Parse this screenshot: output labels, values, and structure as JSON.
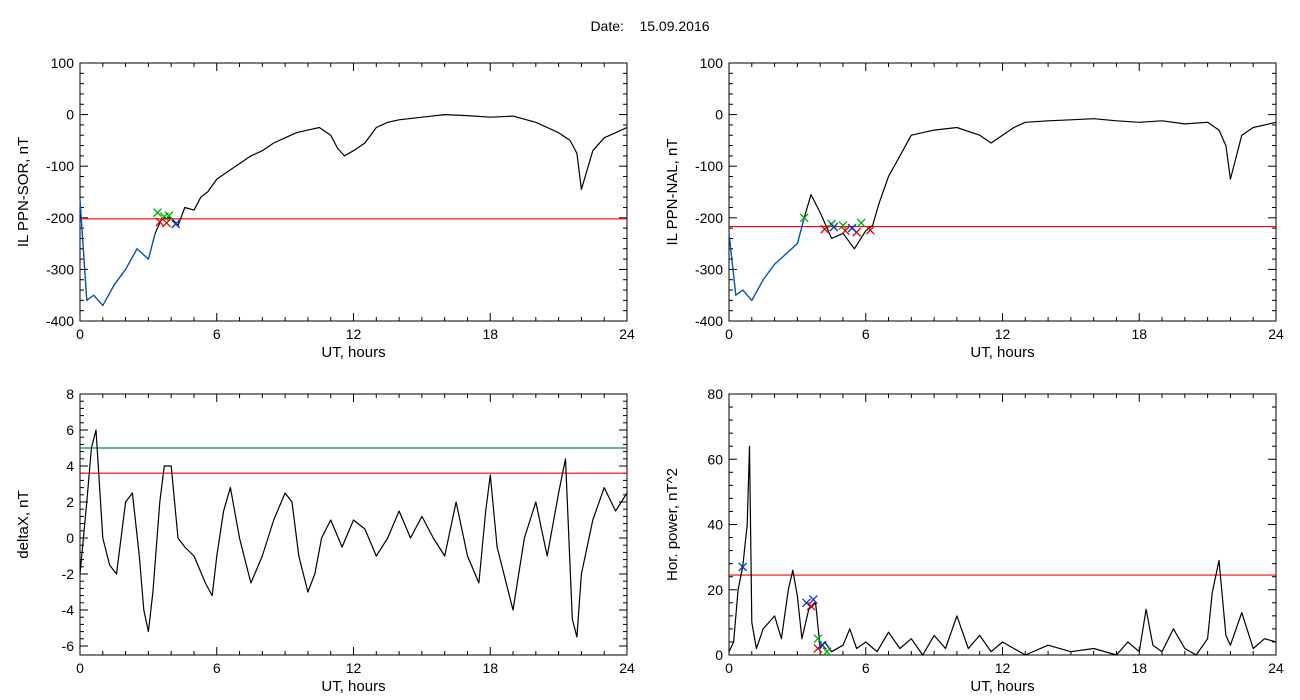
{
  "header": {
    "date_label": "Date:",
    "date_value": "15.09.2016"
  },
  "chart_data": [
    {
      "type": "line",
      "xlabel": "UT, hours",
      "ylabel": "IL PPN-SOR, nT",
      "xlim": [
        0,
        24
      ],
      "ylim": [
        -400,
        100
      ],
      "xticks": [
        0,
        6,
        12,
        18,
        24
      ],
      "yticks": [
        -400,
        -300,
        -200,
        -100,
        0,
        100
      ],
      "threshold": {
        "y": -202,
        "color": "#ff0000"
      },
      "series": [
        {
          "color": "#000000",
          "x": [
            0,
            0.3,
            0.6,
            1,
            1.5,
            2,
            2.5,
            3,
            3.3,
            3.6,
            4,
            4.3,
            4.6,
            5,
            5.3,
            5.6,
            6,
            6.5,
            7,
            7.5,
            8,
            8.5,
            9,
            9.5,
            10,
            10.5,
            11,
            11.3,
            11.6,
            12,
            12.5,
            13,
            13.5,
            14,
            15,
            16,
            17,
            18,
            19,
            20,
            20.5,
            21,
            21.5,
            21.8,
            22,
            22.5,
            23,
            23.5,
            24
          ],
          "y": [
            -165,
            -360,
            -350,
            -370,
            -330,
            -300,
            -260,
            -280,
            -230,
            -200,
            -200,
            -215,
            -180,
            -185,
            -160,
            -150,
            -125,
            -110,
            -95,
            -80,
            -70,
            -55,
            -45,
            -35,
            -30,
            -25,
            -40,
            -65,
            -80,
            -70,
            -55,
            -25,
            -15,
            -10,
            -5,
            0,
            -2,
            -5,
            -3,
            -15,
            -25,
            -35,
            -50,
            -75,
            -145,
            -70,
            -45,
            -35,
            -25
          ]
        },
        {
          "color": "#0055cc",
          "x": [
            0,
            0.3,
            0.6,
            1,
            1.5,
            2,
            2.5,
            3,
            3.3
          ],
          "y": [
            -165,
            -360,
            -350,
            -370,
            -330,
            -300,
            -260,
            -280,
            -230
          ]
        }
      ],
      "markers": [
        {
          "x": 3.4,
          "y": -190,
          "color": "#00aa00"
        },
        {
          "x": 3.7,
          "y": -198,
          "color": "#00aa00"
        },
        {
          "x": 3.9,
          "y": -196,
          "color": "#00aa00"
        },
        {
          "x": 3.5,
          "y": -208,
          "color": "#dd0000"
        },
        {
          "x": 3.8,
          "y": -210,
          "color": "#dd0000"
        },
        {
          "x": 4.2,
          "y": -212,
          "color": "#0033cc"
        }
      ]
    },
    {
      "type": "line",
      "xlabel": "UT, hours",
      "ylabel": "IL PPN-NAL, nT",
      "xlim": [
        0,
        24
      ],
      "ylim": [
        -400,
        100
      ],
      "xticks": [
        0,
        6,
        12,
        18,
        24
      ],
      "yticks": [
        -400,
        -300,
        -200,
        -100,
        0,
        100
      ],
      "threshold": {
        "y": -217,
        "color": "#ff0000"
      },
      "series": [
        {
          "color": "#000000",
          "x": [
            0,
            0.3,
            0.6,
            1,
            1.5,
            2,
            2.5,
            3,
            3.3,
            3.6,
            4,
            4.5,
            5,
            5.5,
            6,
            6.3,
            6.6,
            7,
            7.5,
            8,
            9,
            10,
            11,
            11.5,
            12,
            12.5,
            13,
            14,
            15,
            16,
            17,
            18,
            19,
            20,
            21,
            21.5,
            21.8,
            22,
            22.5,
            23,
            23.5,
            24
          ],
          "y": [
            -230,
            -350,
            -340,
            -360,
            -320,
            -290,
            -270,
            -250,
            -200,
            -155,
            -190,
            -240,
            -230,
            -260,
            -225,
            -215,
            -170,
            -120,
            -80,
            -40,
            -30,
            -25,
            -40,
            -55,
            -40,
            -25,
            -15,
            -12,
            -10,
            -8,
            -12,
            -15,
            -12,
            -18,
            -15,
            -30,
            -60,
            -125,
            -40,
            -25,
            -20,
            -15
          ]
        },
        {
          "color": "#0055cc",
          "x": [
            0,
            0.3,
            0.6,
            1,
            1.5,
            2,
            2.5,
            3,
            3.3
          ],
          "y": [
            -230,
            -350,
            -340,
            -360,
            -320,
            -290,
            -270,
            -250,
            -200
          ]
        }
      ],
      "markers": [
        {
          "x": 3.3,
          "y": -200,
          "color": "#00aa00"
        },
        {
          "x": 4.5,
          "y": -212,
          "color": "#00aa00"
        },
        {
          "x": 5.0,
          "y": -215,
          "color": "#00aa00"
        },
        {
          "x": 5.8,
          "y": -210,
          "color": "#00aa00"
        },
        {
          "x": 4.2,
          "y": -222,
          "color": "#dd0000"
        },
        {
          "x": 5.1,
          "y": -225,
          "color": "#dd0000"
        },
        {
          "x": 5.6,
          "y": -228,
          "color": "#dd0000"
        },
        {
          "x": 6.2,
          "y": -224,
          "color": "#dd0000"
        },
        {
          "x": 4.6,
          "y": -218,
          "color": "#0033cc"
        },
        {
          "x": 5.4,
          "y": -220,
          "color": "#0033cc"
        }
      ]
    },
    {
      "type": "line",
      "xlabel": "UT, hours",
      "ylabel": "deltaX, nT",
      "xlim": [
        0,
        24
      ],
      "ylim": [
        -6.5,
        8
      ],
      "xticks": [
        0,
        6,
        12,
        18,
        24
      ],
      "yticks": [
        -6,
        -4,
        -2,
        0,
        2,
        4,
        6,
        8
      ],
      "threshold": {
        "y": 3.6,
        "color": "#ff0000"
      },
      "threshold2": {
        "y": 5.0,
        "color": "#008080"
      },
      "series": [
        {
          "color": "#000000",
          "x": [
            0,
            0.3,
            0.5,
            0.7,
            1,
            1.3,
            1.6,
            2,
            2.3,
            2.6,
            2.8,
            3,
            3.2,
            3.5,
            3.7,
            4,
            4.3,
            4.6,
            5,
            5.5,
            5.8,
            6,
            6.3,
            6.6,
            7,
            7.5,
            8,
            8.5,
            9,
            9.3,
            9.6,
            10,
            10.3,
            10.6,
            11,
            11.5,
            12,
            12.5,
            13,
            13.5,
            14,
            14.5,
            15,
            15.5,
            16,
            16.5,
            17,
            17.5,
            17.8,
            18,
            18.3,
            18.6,
            19,
            19.5,
            20,
            20.5,
            21,
            21.3,
            21.6,
            21.8,
            22,
            22.5,
            23,
            23.5,
            24
          ],
          "y": [
            -2,
            2,
            5,
            6,
            0,
            -1.5,
            -2,
            2,
            2.5,
            -1,
            -4,
            -5.2,
            -3,
            2,
            4,
            4,
            0,
            -0.5,
            -1,
            -2.5,
            -3.2,
            -1,
            1.5,
            2.8,
            0,
            -2.5,
            -1,
            1,
            2.5,
            2,
            -1,
            -3,
            -2,
            0,
            1,
            -0.5,
            1,
            0.5,
            -1,
            0,
            1.5,
            0,
            1.2,
            0,
            -1,
            2,
            -1,
            -2.5,
            1.5,
            3.5,
            -0.5,
            -2,
            -4,
            0,
            2,
            -1,
            2.5,
            4.4,
            -4.5,
            -5.5,
            -2,
            1,
            2.8,
            1.5,
            2.5
          ]
        }
      ],
      "markers": []
    },
    {
      "type": "line",
      "xlabel": "UT, hours",
      "ylabel": "Hor. power, nT^2",
      "xlim": [
        0,
        24
      ],
      "ylim": [
        0,
        80
      ],
      "xticks": [
        0,
        6,
        12,
        18,
        24
      ],
      "yticks": [
        0,
        20,
        40,
        60,
        80
      ],
      "threshold": {
        "y": 24.5,
        "color": "#ff0000"
      },
      "series": [
        {
          "color": "#000000",
          "x": [
            0,
            0.2,
            0.4,
            0.6,
            0.8,
            0.9,
            1,
            1.2,
            1.5,
            2,
            2.3,
            2.6,
            2.8,
            3,
            3.2,
            3.5,
            3.8,
            4,
            4.2,
            4.5,
            5,
            5.3,
            5.6,
            6,
            6.5,
            7,
            7.5,
            8,
            8.5,
            9,
            9.5,
            10,
            10.5,
            11,
            11.5,
            12,
            13,
            14,
            15,
            16,
            17,
            17.5,
            18,
            18.3,
            18.6,
            19,
            19.5,
            20,
            20.5,
            21,
            21.2,
            21.5,
            21.8,
            22,
            22.5,
            23,
            23.5,
            24
          ],
          "y": [
            1,
            4,
            20,
            27,
            40,
            64,
            10,
            2,
            8,
            12,
            5,
            20,
            26,
            18,
            5,
            14,
            16,
            2,
            4,
            1,
            3,
            8,
            2,
            4,
            1,
            7,
            2,
            5,
            0,
            6,
            2,
            12,
            2,
            6,
            1,
            4,
            0,
            3,
            1,
            2,
            0,
            4,
            1,
            14,
            3,
            1,
            8,
            2,
            0,
            5,
            19,
            29,
            6,
            3,
            13,
            2,
            5,
            4
          ]
        }
      ],
      "markers": [
        {
          "x": 0.6,
          "y": 27,
          "color": "#0033cc"
        },
        {
          "x": 3.4,
          "y": 16,
          "color": "#0033cc"
        },
        {
          "x": 3.7,
          "y": 17,
          "color": "#0033cc"
        },
        {
          "x": 3.6,
          "y": 15,
          "color": "#dd0000"
        },
        {
          "x": 3.9,
          "y": 2,
          "color": "#dd0000"
        },
        {
          "x": 3.9,
          "y": 5,
          "color": "#00aa00"
        },
        {
          "x": 4.1,
          "y": 3,
          "color": "#0033cc"
        },
        {
          "x": 4.3,
          "y": 1,
          "color": "#00aa00"
        }
      ]
    }
  ]
}
